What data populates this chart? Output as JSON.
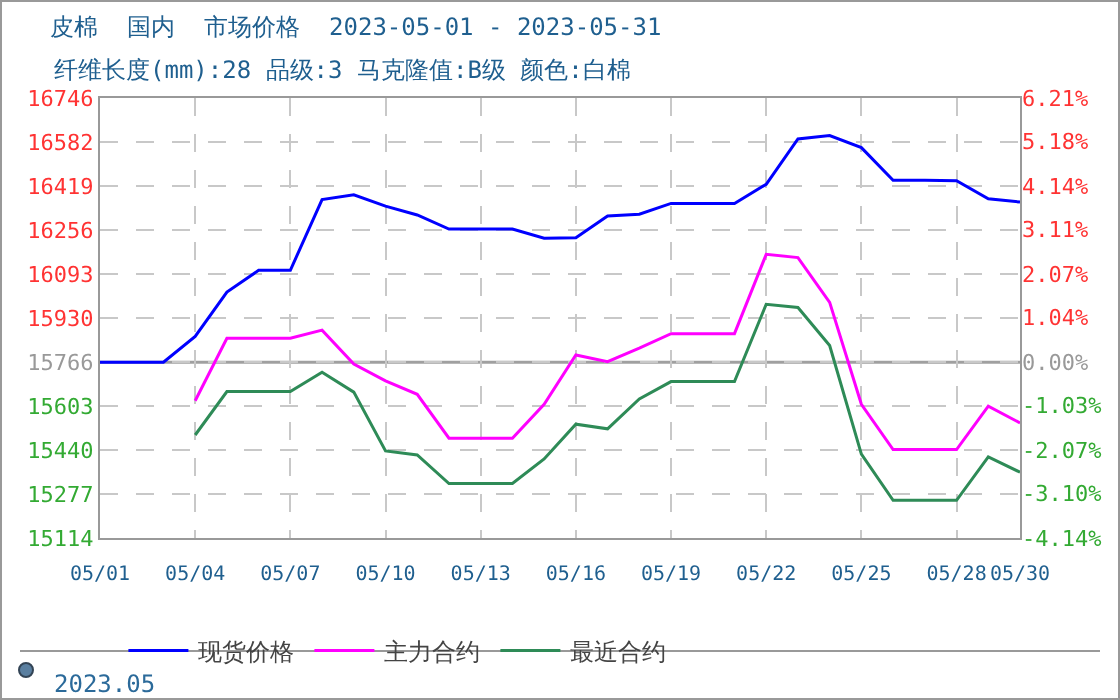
{
  "chart_data": {
    "type": "line",
    "title": "皮棉  国内  市场价格  2023-05-01 - 2023-05-31",
    "subtitle": "纤维长度(mm):28 品级:3 马克隆值:B级 颜色:白棉",
    "x": [
      "2023-05-01",
      "2023-05-02",
      "2023-05-03",
      "2023-05-04",
      "2023-05-05",
      "2023-05-06",
      "2023-05-07",
      "2023-05-08",
      "2023-05-09",
      "2023-05-10",
      "2023-05-11",
      "2023-05-12",
      "2023-05-13",
      "2023-05-14",
      "2023-05-15",
      "2023-05-16",
      "2023-05-17",
      "2023-05-18",
      "2023-05-19",
      "2023-05-20",
      "2023-05-21",
      "2023-05-22",
      "2023-05-23",
      "2023-05-24",
      "2023-05-25",
      "2023-05-26",
      "2023-05-27",
      "2023-05-28",
      "2023-05-29",
      "2023-05-30"
    ],
    "series": [
      {
        "name": "现货价格",
        "color": "#0000ff",
        "values": [
          15766,
          15766,
          15766,
          15862,
          16026,
          16107,
          16107,
          16369,
          16387,
          16345,
          16312,
          16260,
          16260,
          16260,
          16226,
          16228,
          16308,
          16315,
          16355,
          16355,
          16355,
          16426,
          16594,
          16607,
          16562,
          16441,
          16441,
          16439,
          16372,
          16360
        ]
      },
      {
        "name": "主力合约",
        "color": "#ff00ff",
        "values": [
          null,
          null,
          null,
          15623,
          15855,
          15855,
          15855,
          15885,
          15759,
          15697,
          15647,
          15484,
          15484,
          15484,
          15610,
          15793,
          15768,
          15818,
          15872,
          15872,
          15872,
          16166,
          16154,
          15988,
          15610,
          15442,
          15442,
          15442,
          15603,
          15541
        ]
      },
      {
        "name": "最近合约",
        "color": "#2e8b57",
        "values": [
          null,
          null,
          null,
          15496,
          15657,
          15657,
          15657,
          15729,
          15655,
          15437,
          15422,
          15316,
          15316,
          15316,
          15407,
          15536,
          15519,
          15630,
          15694,
          15694,
          15694,
          15981,
          15969,
          15828,
          15425,
          15254,
          15254,
          15254,
          15415,
          15358
        ]
      }
    ],
    "xlim": [
      "2023-05-01",
      "2023-05-30"
    ],
    "xticks": [
      {
        "value": "2023-05-01",
        "label": "05/01"
      },
      {
        "value": "2023-05-04",
        "label": "05/04"
      },
      {
        "value": "2023-05-07",
        "label": "05/07"
      },
      {
        "value": "2023-05-10",
        "label": "05/10"
      },
      {
        "value": "2023-05-13",
        "label": "05/13"
      },
      {
        "value": "2023-05-16",
        "label": "05/16"
      },
      {
        "value": "2023-05-19",
        "label": "05/19"
      },
      {
        "value": "2023-05-22",
        "label": "05/22"
      },
      {
        "value": "2023-05-25",
        "label": "05/25"
      },
      {
        "value": "2023-05-28",
        "label": "05/28"
      },
      {
        "value": "2023-05-30",
        "label": "05/30"
      }
    ],
    "ylim": [
      15114,
      16746
    ],
    "yticks": [
      15114,
      15277,
      15440,
      15603,
      15766,
      15930,
      16093,
      16256,
      16419,
      16582,
      16746
    ],
    "y2lim": [
      -4.14,
      6.21
    ],
    "y2ticks": [
      {
        "value": -4.14,
        "label": "-4.14%"
      },
      {
        "value": -3.1,
        "label": "-3.10%"
      },
      {
        "value": -2.07,
        "label": "-2.07%"
      },
      {
        "value": -1.03,
        "label": "-1.03%"
      },
      {
        "value": 0,
        "label": "0.00%"
      },
      {
        "value": 1.04,
        "label": "1.04%"
      },
      {
        "value": 2.07,
        "label": "2.07%"
      },
      {
        "value": 3.11,
        "label": "3.11%"
      },
      {
        "value": 4.14,
        "label": "4.14%"
      },
      {
        "value": 5.18,
        "label": "5.18%"
      },
      {
        "value": 6.21,
        "label": "6.21%"
      }
    ],
    "ref_lines": [
      {
        "axis": "y",
        "value": 15766,
        "color": "#a0a0a0"
      }
    ],
    "annotations": [
      "2023.05"
    ],
    "grid": true,
    "legend": "bottom",
    "line_style": "solid",
    "marker": "none"
  }
}
